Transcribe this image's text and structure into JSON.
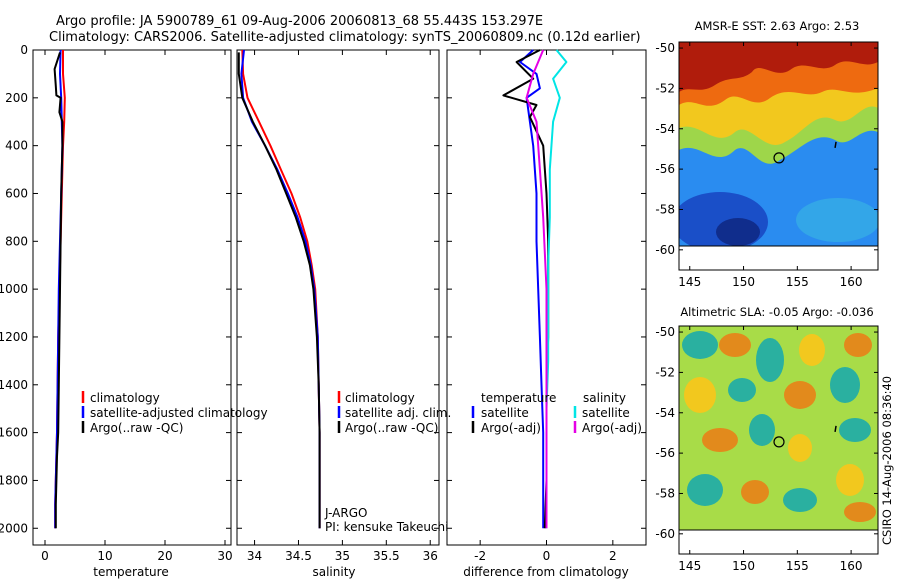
{
  "header": {
    "line1": "Argo profile: JA 5900789_61 09-Aug-2006 20060813_68 55.443S 153.297E",
    "line2": "Climatology: CARS2006. Satellite-adjusted climatology: synTS_20060809.nc (0.12d earlier)"
  },
  "colors": {
    "climatology": "#ff0000",
    "satellite": "#0000ff",
    "argo": "#000000",
    "sal_satellite": "#00e5e5",
    "sal_argo": "#e500e5"
  },
  "chart_data": [
    {
      "type": "line",
      "id": "temperature",
      "xlabel": "temperature",
      "ylabel": "",
      "xlim": [
        -2,
        31
      ],
      "ylim": [
        0,
        2070
      ],
      "y_reversed": true,
      "x_ticks": [
        0,
        10,
        20,
        30
      ],
      "x_tick_labels": [
        "0",
        "10",
        "20",
        "30"
      ],
      "y_ticks": [
        0,
        200,
        400,
        600,
        800,
        1000,
        1200,
        1400,
        1600,
        1800,
        2000
      ],
      "y_tick_labels": [
        "0",
        "200",
        "400",
        "600",
        "800",
        "1000",
        "1200",
        "1400",
        "1600",
        "1800",
        "2000"
      ],
      "legend": {
        "placement": "lower-right",
        "entries": [
          "climatology",
          "satellite-adjusted climatology",
          "Argo(..raw -QC)"
        ]
      },
      "series": [
        {
          "name": "climatology",
          "color": "#ff0000",
          "x": [
            3.0,
            3.0,
            3.3,
            3.2,
            3.0,
            2.9,
            2.8,
            2.7,
            2.6,
            2.5,
            2.4,
            2.2,
            2.1,
            2.0,
            1.9,
            1.8,
            1.7,
            1.7
          ],
          "y": [
            0,
            100,
            200,
            300,
            400,
            500,
            600,
            700,
            800,
            900,
            1000,
            1200,
            1400,
            1600,
            1700,
            1800,
            1900,
            2000
          ]
        },
        {
          "name": "satellite-adjusted climatology",
          "color": "#0000ff",
          "x": [
            2.6,
            2.5,
            2.7,
            2.8,
            2.9,
            2.8,
            2.7,
            2.6,
            2.5,
            2.4,
            2.3,
            2.2,
            2.1,
            2.0,
            1.9,
            1.8,
            1.7,
            1.7
          ],
          "y": [
            0,
            100,
            200,
            300,
            400,
            500,
            600,
            700,
            800,
            900,
            1000,
            1200,
            1400,
            1600,
            1700,
            1800,
            1900,
            2000
          ]
        },
        {
          "name": "Argo(..raw -QC)",
          "color": "#000000",
          "x": [
            2.5,
            1.6,
            1.8,
            1.9,
            2.6,
            2.4,
            2.9,
            2.9,
            2.8,
            2.7,
            2.6,
            2.5,
            2.4,
            2.3,
            2.2,
            2.0,
            1.9,
            1.8,
            1.8
          ],
          "y": [
            10,
            80,
            150,
            190,
            200,
            260,
            300,
            400,
            500,
            600,
            800,
            1000,
            1200,
            1400,
            1600,
            1700,
            1800,
            1900,
            2000
          ]
        }
      ]
    },
    {
      "type": "line",
      "id": "salinity",
      "xlabel": "salinity",
      "ylabel": "",
      "xlim": [
        33.8,
        36.1
      ],
      "ylim": [
        0,
        2070
      ],
      "y_reversed": true,
      "x_ticks": [
        34,
        34.5,
        35,
        35.5,
        36
      ],
      "x_tick_labels": [
        "34",
        "34.5",
        "35",
        "35.5",
        "36"
      ],
      "legend": {
        "placement": "lower-right",
        "entries": [
          "climatology",
          "satellite adj. clim.",
          "Argo(..raw -QC)"
        ]
      },
      "annotations": [
        "J-ARGO",
        "PI: kensuke Takeuchi"
      ],
      "series": [
        {
          "name": "climatology",
          "color": "#ff0000",
          "x": [
            33.86,
            33.87,
            33.92,
            34.05,
            34.18,
            34.3,
            34.42,
            34.52,
            34.6,
            34.65,
            34.69,
            34.72,
            34.73,
            34.74,
            34.74
          ],
          "y": [
            0,
            100,
            200,
            300,
            400,
            500,
            600,
            700,
            800,
            900,
            1000,
            1200,
            1400,
            1600,
            2000
          ]
        },
        {
          "name": "satellite adj. clim.",
          "color": "#0000ff",
          "x": [
            33.88,
            33.85,
            33.87,
            33.97,
            34.12,
            34.26,
            34.38,
            34.49,
            34.58,
            34.64,
            34.68,
            34.72,
            34.73,
            34.74,
            34.74
          ],
          "y": [
            0,
            100,
            200,
            300,
            400,
            500,
            600,
            700,
            800,
            900,
            1000,
            1200,
            1400,
            1600,
            2000
          ]
        },
        {
          "name": "Argo(..raw -QC)",
          "color": "#000000",
          "x": [
            33.82,
            33.82,
            33.86,
            33.98,
            34.12,
            34.25,
            34.36,
            34.47,
            34.56,
            34.63,
            34.67,
            34.71,
            34.73,
            34.74,
            34.74
          ],
          "y": [
            10,
            100,
            200,
            300,
            400,
            500,
            600,
            700,
            800,
            900,
            1000,
            1200,
            1400,
            1600,
            2000
          ]
        }
      ]
    },
    {
      "type": "line",
      "id": "difference",
      "xlabel": "difference from climatology",
      "ylabel": "",
      "xlim": [
        -3,
        3
      ],
      "ylim": [
        0,
        2070
      ],
      "y_reversed": true,
      "x_ticks": [
        -2,
        0,
        2
      ],
      "x_tick_labels": [
        "-2",
        "0",
        "2"
      ],
      "legend": {
        "placement": "lower-center",
        "temperature_title": "temperature",
        "salinity_title": "salinity",
        "temperature_entries": [
          "satellite",
          "Argo(-adj)"
        ],
        "salinity_entries": [
          "satellite",
          "Argo(-adj)"
        ]
      },
      "series": [
        {
          "name": "temperature satellite",
          "color": "#0000ff",
          "x": [
            -0.4,
            -0.8,
            -0.3,
            -0.2,
            -0.6,
            -0.5,
            -0.4,
            -0.3,
            -0.3,
            -0.25,
            -0.2,
            -0.15,
            -0.1,
            -0.1,
            -0.1
          ],
          "y": [
            0,
            50,
            100,
            160,
            200,
            300,
            400,
            600,
            800,
            1000,
            1200,
            1400,
            1600,
            1800,
            2000
          ]
        },
        {
          "name": "temperature Argo(-adj)",
          "color": "#000000",
          "x": [
            -0.2,
            -0.9,
            -0.4,
            -1.3,
            -0.3,
            -0.5,
            -0.1,
            0.0,
            0.05,
            0.05,
            0.05,
            0.0,
            0.0,
            0.0,
            -0.05
          ],
          "y": [
            0,
            50,
            120,
            190,
            230,
            280,
            400,
            600,
            800,
            1000,
            1200,
            1400,
            1600,
            1800,
            2000
          ]
        },
        {
          "name": "salinity satellite",
          "color": "#00e5e5",
          "x": [
            0.3,
            0.6,
            0.2,
            0.4,
            0.2,
            0.1,
            0.1,
            0.05,
            0.05,
            0.05,
            0.0,
            0.0,
            0.0
          ],
          "y": [
            0,
            50,
            120,
            200,
            300,
            500,
            700,
            900,
            1100,
            1300,
            1500,
            1800,
            2000
          ]
        },
        {
          "name": "salinity Argo(-adj)",
          "color": "#e500e5",
          "x": [
            -0.1,
            -0.4,
            -0.6,
            -0.3,
            -0.2,
            -0.1,
            0.0,
            0.0,
            0.0,
            0.0
          ],
          "y": [
            0,
            100,
            200,
            300,
            500,
            700,
            1000,
            1400,
            1800,
            2000
          ]
        }
      ]
    },
    {
      "type": "heatmap",
      "id": "sst_map",
      "title": "AMSR-E SST: 2.63 Argo: 2.53",
      "xlim": [
        144,
        162.5
      ],
      "ylim": [
        -61,
        -49.7
      ],
      "x_ticks": [
        145,
        150,
        155,
        160
      ],
      "x_tick_labels": [
        "145",
        "150",
        "155",
        "160"
      ],
      "y_ticks": [
        -50,
        -52,
        -54,
        -56,
        -58,
        -60
      ],
      "y_tick_labels": [
        "-50",
        "-52",
        "-54",
        "-56",
        "-58",
        "-60"
      ],
      "marker": {
        "lon": 153.297,
        "lat": -55.443
      },
      "tick_mark": {
        "lon": 158.6,
        "lat": -54.8
      }
    },
    {
      "type": "heatmap",
      "id": "sla_map",
      "title": "Altimetric SLA: -0.05 Argo: -0.036",
      "xlim": [
        144,
        162.5
      ],
      "ylim": [
        -61,
        -49.7
      ],
      "x_ticks": [
        145,
        150,
        155,
        160
      ],
      "x_tick_labels": [
        "145",
        "150",
        "155",
        "160"
      ],
      "y_ticks": [
        -50,
        -52,
        -54,
        -56,
        -58,
        -60
      ],
      "y_tick_labels": [
        "-50",
        "-52",
        "-54",
        "-56",
        "-58",
        "-60"
      ],
      "marker": {
        "lon": 153.297,
        "lat": -55.443
      },
      "tick_mark": {
        "lon": 158.6,
        "lat": -54.8
      }
    }
  ],
  "footer": {
    "credit": "CSIRO 14-Aug-2006 08:36:40"
  }
}
